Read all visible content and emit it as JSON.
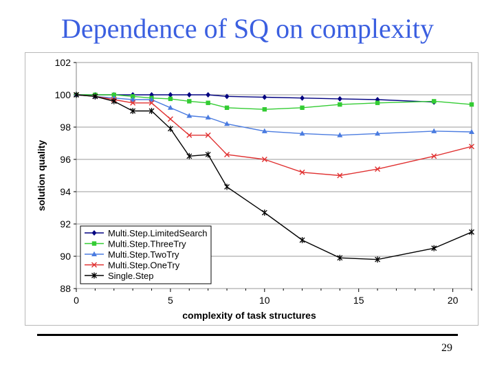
{
  "slide": {
    "title": "Dependence of SQ on complexity",
    "page_number": "29"
  },
  "chart_data": {
    "type": "line",
    "title": "",
    "xlabel": "complexity of task structures",
    "ylabel": "solution quality",
    "xlim": [
      0,
      21
    ],
    "ylim": [
      88,
      102
    ],
    "xticks": [
      0,
      5,
      10,
      15,
      20
    ],
    "yticks": [
      88,
      90,
      92,
      94,
      96,
      98,
      100,
      102
    ],
    "grid": "horizontal",
    "legend": "bottom-left",
    "plot_background": "#ffffff",
    "series": [
      {
        "name": "Multi.Step.LimitedSearch",
        "color": "#000080",
        "marker": "diamond",
        "x": [
          0,
          1,
          2,
          3,
          4,
          5,
          6,
          7,
          8,
          10,
          12,
          14,
          16,
          19
        ],
        "y": [
          100,
          100,
          100,
          100,
          100,
          100,
          100,
          100,
          99.9,
          99.85,
          99.8,
          99.75,
          99.7,
          99.55
        ]
      },
      {
        "name": "Multi.Step.ThreeTry",
        "color": "#33cc33",
        "marker": "square",
        "x": [
          0,
          1,
          2,
          3,
          4,
          5,
          6,
          7,
          8,
          10,
          12,
          14,
          16,
          19,
          21
        ],
        "y": [
          100,
          100,
          100,
          99.9,
          99.8,
          99.75,
          99.6,
          99.5,
          99.2,
          99.1,
          99.2,
          99.4,
          99.5,
          99.6,
          99.4
        ]
      },
      {
        "name": "Multi.Step.TwoTry",
        "color": "#4a7be0",
        "marker": "triangle",
        "x": [
          0,
          1,
          2,
          3,
          4,
          5,
          6,
          7,
          8,
          10,
          12,
          14,
          16,
          19,
          21
        ],
        "y": [
          100,
          99.9,
          99.8,
          99.7,
          99.7,
          99.2,
          98.7,
          98.6,
          98.2,
          97.75,
          97.6,
          97.5,
          97.6,
          97.75,
          97.7
        ]
      },
      {
        "name": "Multi.Step.OneTry",
        "color": "#e03030",
        "marker": "x",
        "x": [
          0,
          1,
          2,
          3,
          4,
          5,
          6,
          7,
          8,
          10,
          12,
          14,
          16,
          19,
          21
        ],
        "y": [
          100,
          99.9,
          99.7,
          99.5,
          99.5,
          98.5,
          97.5,
          97.5,
          96.3,
          96.0,
          95.2,
          95.0,
          95.4,
          96.2,
          96.8
        ]
      },
      {
        "name": "Single.Step",
        "color": "#000000",
        "marker": "star",
        "x": [
          0,
          1,
          2,
          3,
          4,
          5,
          6,
          7,
          8,
          10,
          12,
          14,
          16,
          19,
          21
        ],
        "y": [
          100,
          99.9,
          99.6,
          99.0,
          99.0,
          97.9,
          96.2,
          96.3,
          94.3,
          92.7,
          91.0,
          89.9,
          89.8,
          90.5,
          91.5
        ]
      }
    ],
    "legend_labels": [
      "Multi.Step.LimitedSearch",
      "Multi.Step.ThreeTry",
      "Multi.Step.TwoTry",
      "Multi.Step.OneTry",
      "Single.Step"
    ]
  }
}
